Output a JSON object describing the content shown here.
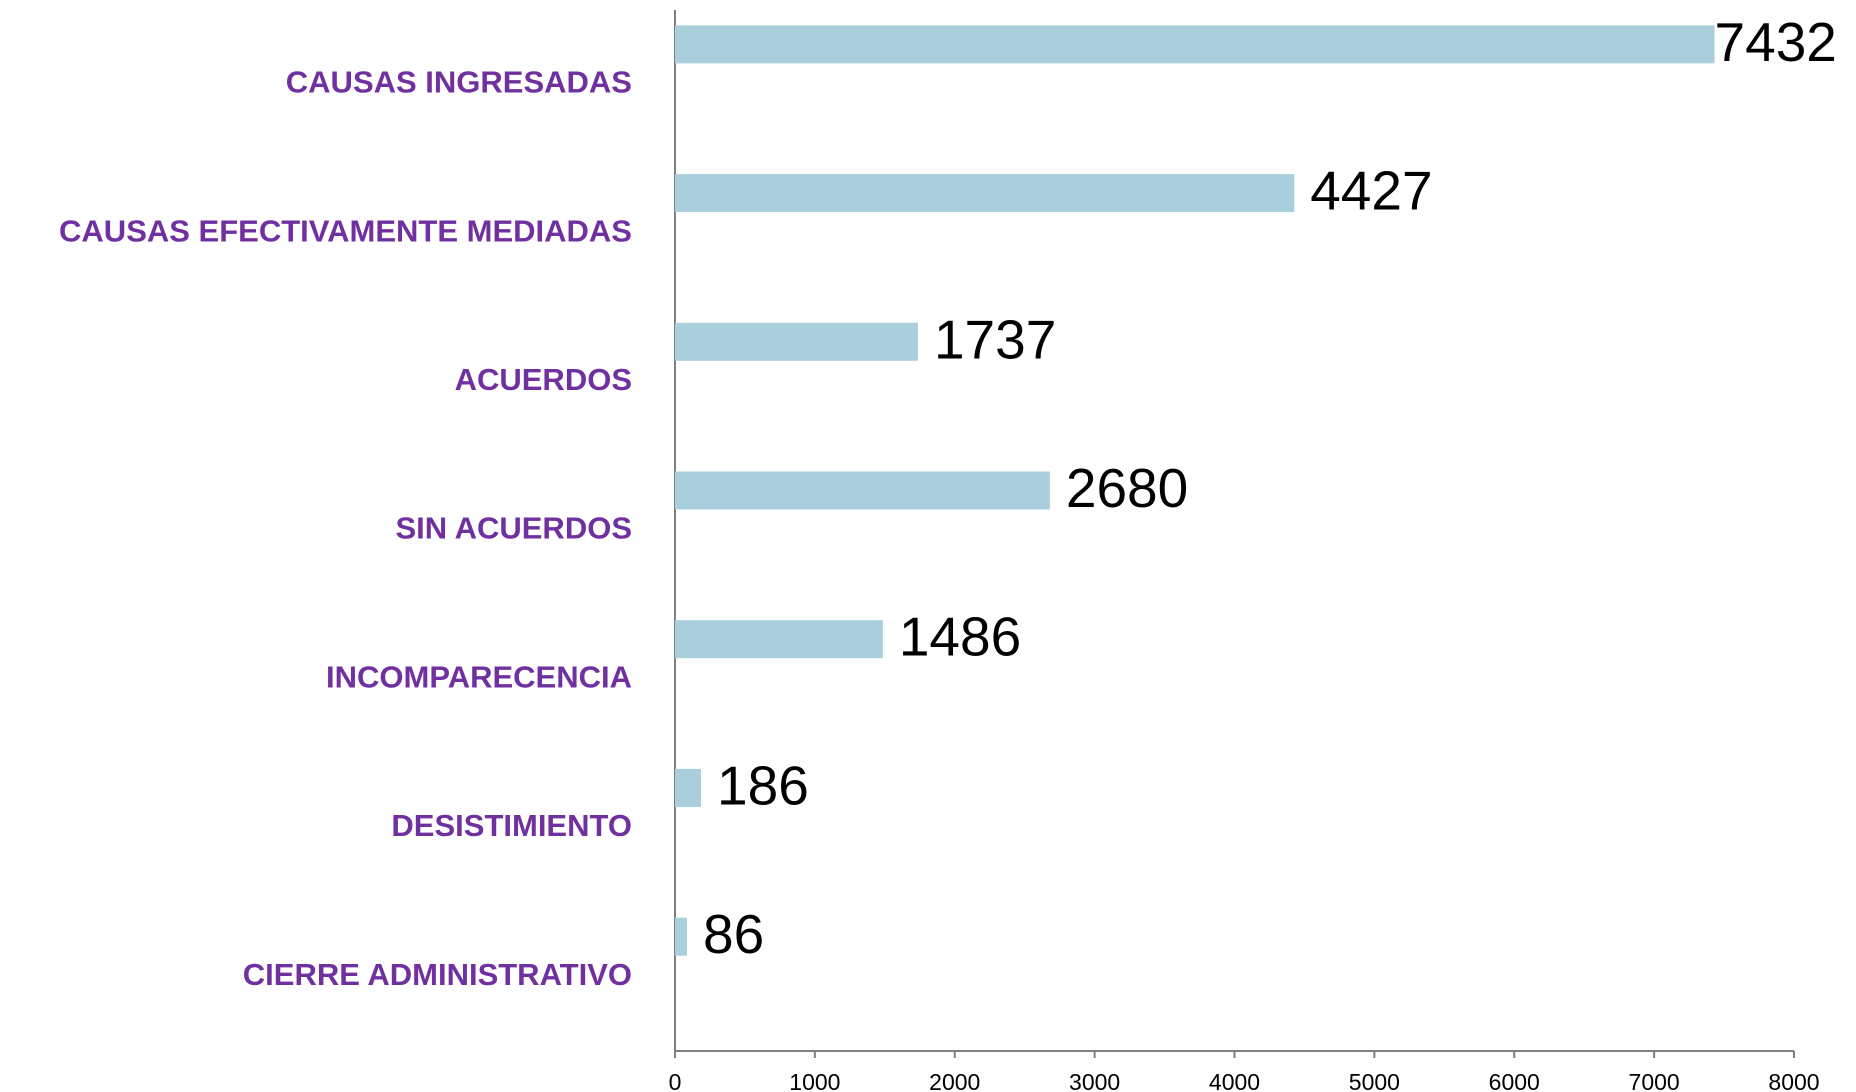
{
  "chart_data": {
    "type": "bar",
    "orientation": "horizontal",
    "categories": [
      "CAUSAS INGRESADAS",
      "CAUSAS EFECTIVAMENTE MEDIADAS",
      "ACUERDOS",
      "SIN ACUERDOS",
      "INCOMPARECENCIA",
      "DESISTIMIENTO",
      "CIERRE ADMINISTRATIVO"
    ],
    "values": [
      7432,
      4427,
      1737,
      2680,
      1486,
      186,
      86
    ],
    "color": "#a9cfdd",
    "xlim": [
      0,
      8000
    ],
    "xticks": [
      0,
      1000,
      2000,
      3000,
      4000,
      5000,
      6000,
      7000,
      8000
    ],
    "grid": false
  }
}
